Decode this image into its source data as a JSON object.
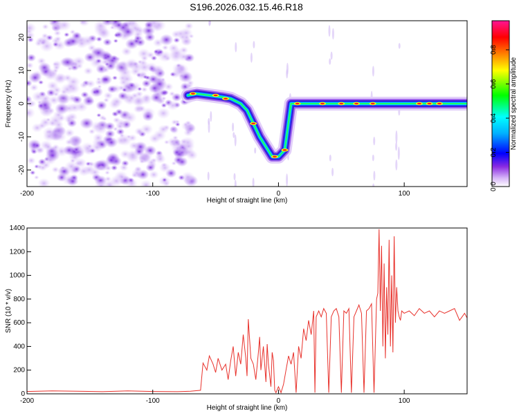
{
  "chart_data": [
    {
      "type": "heatmap",
      "title": "S196.2026.032.15.46.R18",
      "xlabel": "Height of straight line (km)",
      "ylabel": "Frequency (Hz)",
      "xlim": [
        -200,
        150
      ],
      "ylim": [
        -25,
        25
      ],
      "xticks": [
        -200,
        -100,
        0,
        100
      ],
      "yticks": [
        -20,
        -10,
        0,
        10,
        20
      ],
      "colorbar": {
        "label": "Normalized spectral amplitude",
        "range": [
          0,
          0.97
        ],
        "ticks": [
          0.0,
          0.2,
          0.4,
          0.6,
          0.8
        ],
        "tick_labels": [
          "0.0",
          "0.2",
          "0.4",
          "0.6",
          "0.8"
        ],
        "colors": [
          "#ffffff",
          "#d8b8f8",
          "#8a2be2",
          "#0000ff",
          "#00ffff",
          "#00ff00",
          "#ffff00",
          "#ff8000",
          "#ff0000",
          "#ff1493"
        ]
      },
      "ridge": [
        {
          "x": -72,
          "y": 2.5
        },
        {
          "x": -65,
          "y": 3
        },
        {
          "x": -55,
          "y": 2.5
        },
        {
          "x": -45,
          "y": 2
        },
        {
          "x": -38,
          "y": 1.5
        },
        {
          "x": -30,
          "y": 0
        },
        {
          "x": -25,
          "y": -2
        },
        {
          "x": -20,
          "y": -6
        },
        {
          "x": -15,
          "y": -10
        },
        {
          "x": -10,
          "y": -13
        },
        {
          "x": -5,
          "y": -16
        },
        {
          "x": 0,
          "y": -16
        },
        {
          "x": 5,
          "y": -14
        },
        {
          "x": 10,
          "y": 0
        },
        {
          "x": 30,
          "y": 0
        },
        {
          "x": 60,
          "y": 0
        },
        {
          "x": 90,
          "y": 0
        },
        {
          "x": 100,
          "y": 0
        },
        {
          "x": 120,
          "y": 0
        },
        {
          "x": 150,
          "y": 0
        }
      ],
      "noise_region": [
        -200,
        -68
      ]
    },
    {
      "type": "line",
      "xlabel": "Height of straight line (km)",
      "ylabel": "SNR (10 * v/v)",
      "xlim": [
        -200,
        150
      ],
      "ylim": [
        0,
        1400
      ],
      "xticks": [
        -200,
        -100,
        0,
        100
      ],
      "yticks": [
        0,
        200,
        400,
        600,
        800,
        1000,
        1200,
        1400
      ],
      "color": "#e8302a",
      "x": [
        -200,
        -180,
        -160,
        -140,
        -120,
        -100,
        -80,
        -70,
        -62,
        -60,
        -57,
        -55,
        -52,
        -50,
        -48,
        -45,
        -42,
        -40,
        -38,
        -36,
        -34,
        -32,
        -30,
        -28,
        -26,
        -25,
        -24,
        -22,
        -20,
        -18,
        -16,
        -15,
        -14,
        -12,
        -10,
        -9,
        -8,
        -6,
        -5,
        -4,
        -3,
        -2,
        0,
        2,
        4,
        6,
        8,
        10,
        12,
        14,
        16,
        18,
        20,
        22,
        24,
        26,
        28,
        29,
        30,
        32,
        34,
        36,
        38,
        40,
        42,
        44,
        46,
        48,
        50,
        52,
        54,
        56,
        58,
        60,
        62,
        64,
        66,
        68,
        70,
        72,
        74,
        76,
        78,
        79,
        80,
        81,
        82,
        83,
        84,
        85,
        86,
        87,
        88,
        89,
        90,
        91,
        92,
        93,
        94,
        95,
        96,
        97,
        98,
        100,
        104,
        108,
        112,
        116,
        120,
        124,
        128,
        132,
        136,
        140,
        144,
        148,
        150
      ],
      "y": [
        20,
        25,
        22,
        18,
        25,
        20,
        18,
        22,
        30,
        260,
        200,
        320,
        250,
        180,
        300,
        200,
        250,
        120,
        280,
        400,
        150,
        350,
        250,
        500,
        300,
        150,
        630,
        300,
        250,
        120,
        350,
        480,
        200,
        400,
        100,
        420,
        250,
        60,
        350,
        280,
        30,
        10,
        60,
        10,
        80,
        200,
        320,
        250,
        350,
        10,
        400,
        300,
        550,
        450,
        620,
        500,
        700,
        10,
        650,
        700,
        650,
        720,
        680,
        10,
        650,
        700,
        720,
        650,
        10,
        700,
        680,
        720,
        10,
        650,
        700,
        750,
        680,
        10,
        700,
        720,
        760,
        10,
        800,
        850,
        1390,
        700,
        1250,
        400,
        1100,
        300,
        900,
        500,
        1300,
        400,
        1000,
        350,
        1330,
        600,
        900,
        700,
        650,
        620,
        700,
        680,
        700,
        660,
        720,
        680,
        700,
        650,
        700,
        680,
        700,
        720,
        620,
        680,
        640
      ]
    }
  ]
}
